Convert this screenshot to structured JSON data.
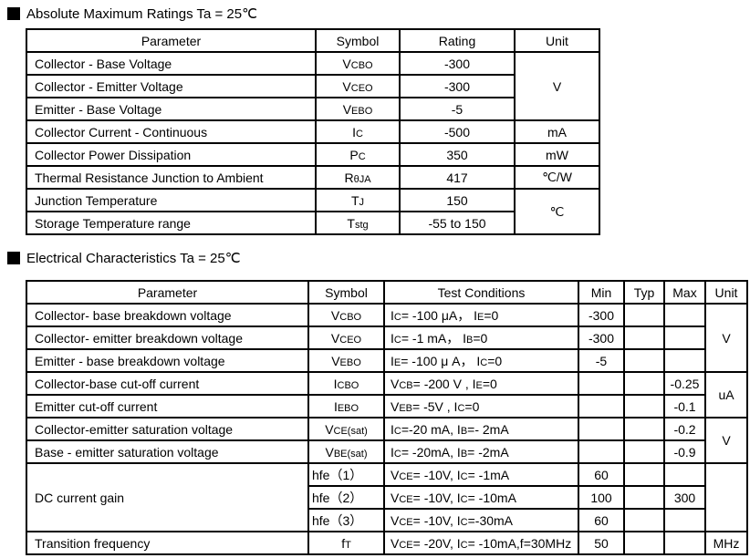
{
  "meta": {
    "background": "#ffffff",
    "text_color": "#000000",
    "border_color": "#000000",
    "bullet_icon": "black-square"
  },
  "section1": {
    "title": "Absolute Maximum Ratings Ta = 25℃",
    "headers": [
      "Parameter",
      "Symbol",
      "Rating",
      "Unit"
    ],
    "rows": [
      {
        "parameter": "Collector - Base Voltage",
        "symbol": "V~CBO~",
        "rating": "-300"
      },
      {
        "parameter": "Collector - Emitter Voltage",
        "symbol": "V~CEO~",
        "rating": "-300"
      },
      {
        "parameter": "Emitter - Base Voltage",
        "symbol": "V~EBO~",
        "rating": "-5"
      },
      {
        "parameter": "Collector Current  - Continuous",
        "symbol": "I~C~",
        "rating": "-500",
        "unit": "mA"
      },
      {
        "parameter": "Collector Power Dissipation",
        "symbol": "P~C~",
        "rating": "350",
        "unit": "mW"
      },
      {
        "parameter": "Thermal Resistance Junction to Ambient",
        "symbol": "R~θJA~",
        "rating": "417",
        "unit": "℃/W"
      },
      {
        "parameter": "Junction Temperature",
        "symbol": "T~J~",
        "rating": "150"
      },
      {
        "parameter": "Storage Temperature range",
        "symbol": "T~stg~",
        "rating": "-55 to 150"
      }
    ],
    "merged_units": {
      "voltage": "V",
      "temperature": "℃"
    }
  },
  "section2": {
    "title": "Electrical Characteristics Ta = 25℃",
    "headers": [
      "Parameter",
      "Symbol",
      "Test Conditions",
      "Min",
      "Typ",
      "Max",
      "Unit"
    ],
    "rows": [
      {
        "parameter": "Collector- base breakdown voltage",
        "symbol": "V~CBO~",
        "conditions": "I~C~= -100 μA， I~E~=0",
        "min": "-300",
        "typ": "",
        "max": ""
      },
      {
        "parameter": "Collector- emitter breakdown voltage",
        "symbol": "V~CEO~",
        "conditions": "I~C~= -1 mA， I~B~=0",
        "min": "-300",
        "typ": "",
        "max": ""
      },
      {
        "parameter": "Emitter - base breakdown voltage",
        "symbol": "V~EBO~",
        "conditions": "I~E~= -100 μ A， I~C~=0",
        "min": "-5",
        "typ": "",
        "max": ""
      },
      {
        "parameter": "Collector-base cut-off current",
        "symbol": "I~CBO~",
        "conditions": "V~CB~= -200 V , I~E~=0",
        "min": "",
        "typ": "",
        "max": "-0.25"
      },
      {
        "parameter": "Emitter cut-off current",
        "symbol": "I~EBO~",
        "conditions": "V~EB~= -5V , I~C~=0",
        "min": "",
        "typ": "",
        "max": "-0.1"
      },
      {
        "parameter": "Collector-emitter saturation voltage",
        "symbol": "V~CE(sat)~",
        "conditions": "I~C~=-20 mA, I~B~=- 2mA",
        "min": "",
        "typ": "",
        "max": "-0.2"
      },
      {
        "parameter": "Base - emitter saturation voltage",
        "symbol": "V~BE(sat)~",
        "conditions": "I~C~= -20mA, I~B~= -2mA",
        "min": "",
        "typ": "",
        "max": "-0.9"
      },
      {
        "parameter": "DC current gain",
        "symbol": "hfe（1）",
        "conditions": "V~CE~= -10V, I~C~= -1mA",
        "min": "60",
        "typ": "",
        "max": ""
      },
      {
        "symbol": "hfe（2）",
        "conditions": "V~CE~= -10V, I~C~= -10mA",
        "min": "100",
        "typ": "",
        "max": "300"
      },
      {
        "symbol": "hfe（3）",
        "conditions": "V~CE~= -10V, I~C~=-30mA",
        "min": "60",
        "typ": "",
        "max": ""
      },
      {
        "parameter": "Transition frequency",
        "symbol": "f~T~",
        "conditions": "V~CE~= -20V, I~C~= -10mA,f=30MHz",
        "min": "50",
        "typ": "",
        "max": ""
      }
    ],
    "merged_units": {
      "breakdown_v": "V",
      "cutoff_ua": "uA",
      "sat_v": "V",
      "hfe_blank": "",
      "ft": "MHz"
    }
  }
}
